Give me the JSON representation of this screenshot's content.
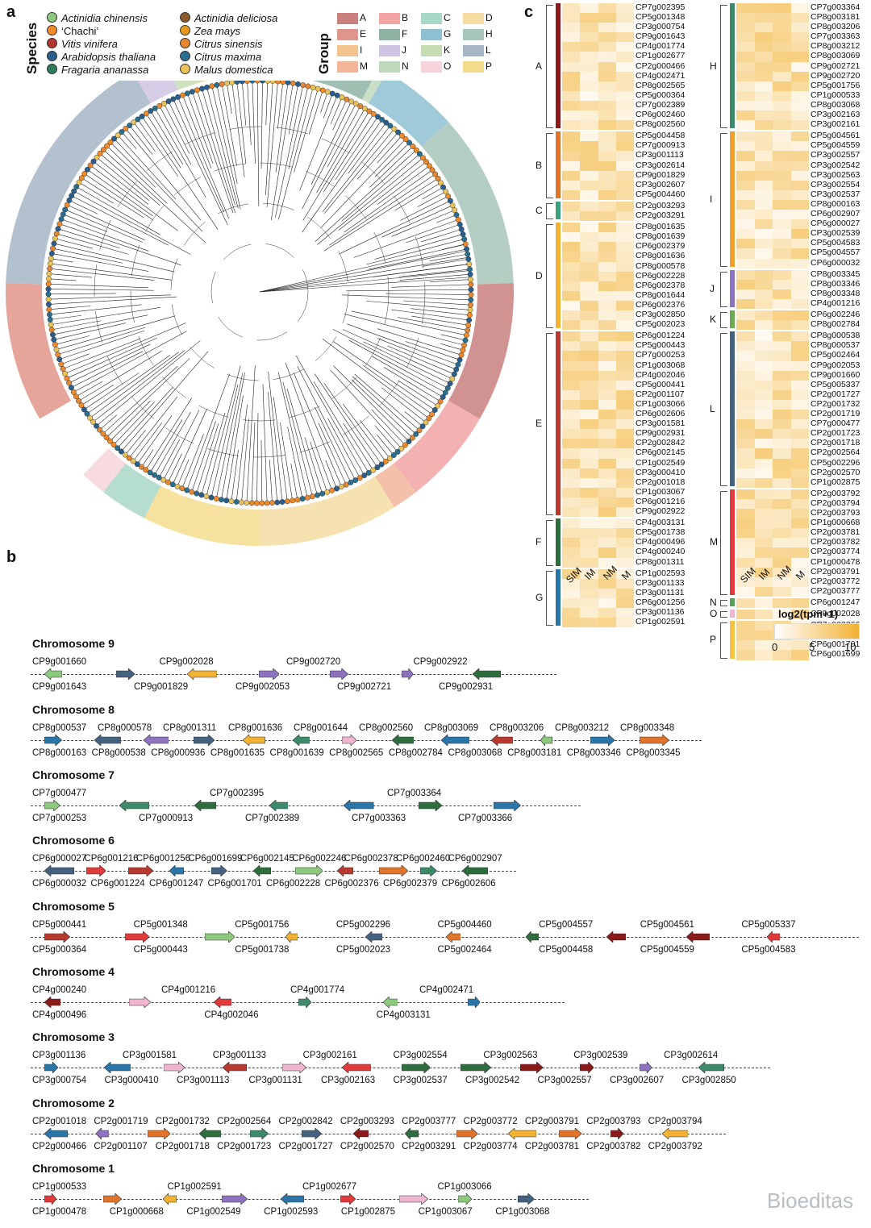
{
  "panels": {
    "a": "a",
    "b": "b",
    "c": "c"
  },
  "species_legend": {
    "title": "Species",
    "items": [
      {
        "name": "Actinidia chinensis",
        "color": "#8cc97c",
        "italic": true
      },
      {
        "name": "‘Chachi’",
        "color": "#f08a2a",
        "italic": false
      },
      {
        "name": "Vitis vinifera",
        "color": "#b0352c",
        "italic": true
      },
      {
        "name": "Arabidopsis thaliana",
        "color": "#2b5e8c",
        "italic": true
      },
      {
        "name": "Fragaria ananassa",
        "color": "#2f7a5a",
        "italic": true
      },
      {
        "name": "Actinidia deliciosa",
        "color": "#8a5a2b",
        "italic": true
      },
      {
        "name": "Zea mays",
        "color": "#e59a1c",
        "italic": true
      },
      {
        "name": "Citrus sinensis",
        "color": "#e6862f",
        "italic": true
      },
      {
        "name": "Citrus maxima",
        "color": "#2a6f8f",
        "italic": true
      },
      {
        "name": "Malus domestica",
        "color": "#eac25a",
        "italic": true
      }
    ]
  },
  "group_legend": {
    "title": "Group",
    "items": [
      {
        "name": "A",
        "color": "#c9807e"
      },
      {
        "name": "B",
        "color": "#f2a3a3"
      },
      {
        "name": "C",
        "color": "#a9d8c6"
      },
      {
        "name": "D",
        "color": "#f5dca2"
      },
      {
        "name": "E",
        "color": "#e0958a"
      },
      {
        "name": "F",
        "color": "#8fb3a3"
      },
      {
        "name": "G",
        "color": "#8fbfd2"
      },
      {
        "name": "H",
        "color": "#a7c5ba"
      },
      {
        "name": "I",
        "color": "#f4c48f"
      },
      {
        "name": "J",
        "color": "#cfc3e2"
      },
      {
        "name": "K",
        "color": "#c7dcb3"
      },
      {
        "name": "L",
        "color": "#a6b6c6"
      },
      {
        "name": "M",
        "color": "#f2b59a"
      },
      {
        "name": "N",
        "color": "#bfd9bd"
      },
      {
        "name": "O",
        "color": "#f7d4dc"
      },
      {
        "name": "P",
        "color": "#f4dc8d"
      }
    ]
  },
  "heatmap": {
    "legend_title": "log2(tpm+1)",
    "legend_ticks": [
      "0",
      "5",
      "10"
    ],
    "columns": [
      "SIM",
      "IM",
      "NM",
      "M"
    ],
    "left_groups": [
      {
        "group": "A",
        "color": "#8b1a1a",
        "genes": [
          "CP7g002395",
          "CP5g001348",
          "CP3g000754",
          "CP9g001643",
          "CP4g001774",
          "CP1g002677",
          "CP2g000466",
          "CP4g002471",
          "CP8g002565",
          "CP5g000364",
          "CP7g002389",
          "CP6g002460",
          "CP8g002560"
        ]
      },
      {
        "group": "B",
        "color": "#e0742a",
        "genes": [
          "CP5g004458",
          "CP7g000913",
          "CP3g001113",
          "CP3g002614",
          "CP9g001829",
          "CP3g002607",
          "CP5g004460"
        ]
      },
      {
        "group": "C",
        "color": "#3aa07a",
        "genes": [
          "CP2g003293",
          "CP2g003291"
        ]
      },
      {
        "group": "D",
        "color": "#f2b233",
        "genes": [
          "CP8g001635",
          "CP8g001639",
          "CP6g002379",
          "CP8g001636",
          "CP8g000578",
          "CP6g002228",
          "CP6g002378",
          "CP8g001644",
          "CP6g002376",
          "CP3g002850",
          "CP5g002023"
        ]
      },
      {
        "group": "E",
        "color": "#b83a2e",
        "genes": [
          "CP6g001224",
          "CP5g000443",
          "CP7g000253",
          "CP1g003068",
          "CP4g002046",
          "CP5g000441",
          "CP2g001107",
          "CP1g003066",
          "CP6g002606",
          "CP3g001581",
          "CP9g002931",
          "CP2g002842",
          "CP6g002145",
          "CP1g002549",
          "CP3g000410",
          "CP2g001018",
          "CP1g003067",
          "CP6g001216",
          "CP9g002922"
        ]
      },
      {
        "group": "F",
        "color": "#2e6e3e",
        "genes": [
          "CP4g003131",
          "CP5g001738",
          "CP4g000496",
          "CP4g000240",
          "CP8g001311"
        ]
      },
      {
        "group": "G",
        "color": "#2a76a8",
        "genes": [
          "CP1g002593",
          "CP3g001133",
          "CP3g001131",
          "CP6g001256",
          "CP3g001136",
          "CP1g002591"
        ]
      }
    ],
    "right_groups": [
      {
        "group": "H",
        "color": "#3d8a6a",
        "genes": [
          "CP7g003364",
          "CP8g003181",
          "CP8g003206",
          "CP7g003363",
          "CP8g003212",
          "CP8g003069",
          "CP9g002721",
          "CP9g002720",
          "CP5g001756",
          "CP1g000533",
          "CP8g003068",
          "CP3g002163",
          "CP3g002161"
        ]
      },
      {
        "group": "I",
        "color": "#f0a02a",
        "genes": [
          "CP5g004561",
          "CP5g004559",
          "CP3g002557",
          "CP3g002542",
          "CP3g002563",
          "CP3g002554",
          "CP3g002537",
          "CP8g000163",
          "CP6g002907",
          "CP6g000027",
          "CP3g002539",
          "CP5g004583",
          "CP5g004557",
          "CP6g000032"
        ]
      },
      {
        "group": "J",
        "color": "#8d72c0",
        "genes": [
          "CP8g003345",
          "CP8g003346",
          "CP8g003348",
          "CP4g001216"
        ]
      },
      {
        "group": "K",
        "color": "#6aab52",
        "genes": [
          "CP6g002246",
          "CP8g002784"
        ]
      },
      {
        "group": "L",
        "color": "#44627f",
        "genes": [
          "CP8g000538",
          "CP8g000537",
          "CP5g002464",
          "CP9g002053",
          "CP9g001660",
          "CP5g005337",
          "CP2g001727",
          "CP2g001732",
          "CP2g001719",
          "CP7g000477",
          "CP2g001723",
          "CP2g001718",
          "CP2g002564",
          "CP5g002296",
          "CP2g002570",
          "CP1g002875"
        ]
      },
      {
        "group": "M",
        "color": "#e03a3a",
        "genes": [
          "CP2g003792",
          "CP2g003794",
          "CP2g003793",
          "CP1g000668",
          "CP2g003781",
          "CP2g003782",
          "CP2g003774",
          "CP1g000478",
          "CP2g003791",
          "CP2g003772",
          "CP2g003777"
        ]
      },
      {
        "group": "N",
        "color": "#55a05a",
        "genes": [
          "CP6g001247"
        ]
      },
      {
        "group": "O",
        "color": "#f0b6cf",
        "genes": [
          "CP9g002028"
        ]
      },
      {
        "group": "P",
        "color": "#f5c242",
        "genes": [
          "CP7g003366",
          "CP8g000936",
          "CP6g001701",
          "CP6g001699"
        ]
      }
    ]
  },
  "chromosomes": [
    {
      "name": "Chromosome 9",
      "top_labels": [
        "CP9g001660",
        "CP9g002028",
        "CP9g002720",
        "CP9g002922"
      ],
      "bottom_labels": [
        "CP9g001643",
        "CP9g001829",
        "CP9g002053",
        "CP9g002721",
        "CP9g002931"
      ]
    },
    {
      "name": "Chromosome 8",
      "top_labels": [
        "CP8g000537",
        "CP8g000578",
        "CP8g001311",
        "CP8g001636",
        "CP8g001644",
        "CP8g002560",
        "CP8g003069",
        "CP8g003206",
        "CP8g003212",
        "CP8g003348"
      ],
      "bottom_labels": [
        "CP8g000163",
        "CP8g000538",
        "CP8g000936",
        "CP8g001635",
        "CP8g001639",
        "CP8g002565",
        "CP8g002784",
        "CP8g003068",
        "CP8g003181",
        "CP8g003346",
        "CP8g003345"
      ]
    },
    {
      "name": "Chromosome 7",
      "top_labels": [
        "CP7g000477",
        "CP7g002395",
        "CP7g003364"
      ],
      "bottom_labels": [
        "CP7g000253",
        "CP7g000913",
        "CP7g002389",
        "CP7g003363",
        "CP7g003366"
      ]
    },
    {
      "name": "Chromosome 6",
      "top_labels": [
        "CP6g000027",
        "CP6g001216",
        "CP6g001256",
        "CP6g001699",
        "CP6g002145",
        "CP6g002246",
        "CP6g002378",
        "CP6g002460",
        "CP6g002907"
      ],
      "bottom_labels": [
        "CP6g000032",
        "CP6g001224",
        "CP6g001247",
        "CP6g001701",
        "CP6g002228",
        "CP6g002376",
        "CP6g002379",
        "CP6g002606"
      ]
    },
    {
      "name": "Chromosome 5",
      "top_labels": [
        "CP5g000441",
        "CP5g001348",
        "CP5g001756",
        "CP5g002296",
        "CP5g004460",
        "CP5g004557",
        "CP5g004561",
        "CP5g005337"
      ],
      "bottom_labels": [
        "CP5g000364",
        "CP5g000443",
        "CP5g001738",
        "CP5g002023",
        "CP5g002464",
        "CP5g004458",
        "CP5g004559",
        "CP5g004583"
      ]
    },
    {
      "name": "Chromosome 4",
      "top_labels": [
        "CP4g000240",
        "CP4g001216",
        "CP4g001774",
        "CP4g002471"
      ],
      "bottom_labels": [
        "CP4g000496",
        "CP4g002046",
        "CP4g003131"
      ]
    },
    {
      "name": "Chromosome 3",
      "top_labels": [
        "CP3g001136",
        "CP3g001581",
        "CP3g001133",
        "CP3g002161",
        "CP3g002554",
        "CP3g002563",
        "CP3g002539",
        "CP3g002614"
      ],
      "bottom_labels": [
        "CP3g000754",
        "CP3g000410",
        "CP3g001113",
        "CP3g001131",
        "CP3g002163",
        "CP3g002537",
        "CP3g002542",
        "CP3g002557",
        "CP3g002607",
        "CP3g002850"
      ]
    },
    {
      "name": "Chromosome 2",
      "top_labels": [
        "CP2g001018",
        "CP2g001719",
        "CP2g001732",
        "CP2g002564",
        "CP2g002842",
        "CP2g003293",
        "CP2g003777",
        "CP2g003772",
        "CP2g003791",
        "CP2g003793",
        "CP2g003794"
      ],
      "bottom_labels": [
        "CP2g000466",
        "CP2g001107",
        "CP2g001718",
        "CP2g001723",
        "CP2g001727",
        "CP2g002570",
        "CP2g003291",
        "CP2g003774",
        "CP2g003781",
        "CP2g003782",
        "CP2g003792"
      ]
    },
    {
      "name": "Chromosome 1",
      "top_labels": [
        "CP1g000533",
        "CP1g002591",
        "CP1g002677",
        "CP1g003066"
      ],
      "bottom_labels": [
        "CP1g000478",
        "CP1g000668",
        "CP1g002549",
        "CP1g002593",
        "CP1g002875",
        "CP1g003067",
        "CP1g003068"
      ]
    }
  ],
  "watermark": "Bioeditas"
}
